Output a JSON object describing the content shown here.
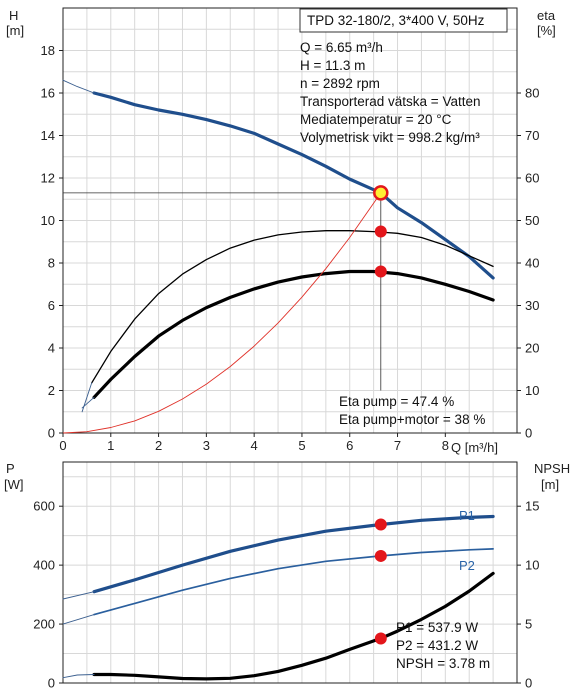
{
  "header": {
    "title": "TPD 32-180/2, 3*400 V, 50Hz"
  },
  "info_lines": [
    "Q = 6.65 m³/h",
    "H = 11.3 m",
    "n = 2892 rpm",
    "Transporterad vätska = Vatten",
    "Mediatemperatur = 20 °C",
    "Volymetrisk vikt = 998.2 kg/m³"
  ],
  "eta_lines": [
    "Eta pump = 47.4 %",
    "Eta pump+motor = 38 %"
  ],
  "power_lines": [
    "P1 = 537.9 W",
    "P2 = 431.2 W",
    "NPSH = 3.78 m"
  ],
  "colors": {
    "head": "#1f4e8c",
    "p1": "#1f4e8c",
    "p2": "#2a5f9e",
    "eta": "#000000",
    "system": "#e0322a",
    "marker": "#e3161b",
    "duty_point": "#ffee33",
    "grid": "#d8d8d8"
  },
  "chart_data": [
    {
      "type": "line",
      "xlabel": "Q [m³/h]",
      "ylabel_left": "H\n[m]",
      "ylabel_right": "eta\n[%]",
      "xlim": [
        0,
        9.5
      ],
      "ylim": [
        0,
        20
      ],
      "ylim_right": [
        0,
        100
      ],
      "xticks": [
        0,
        1,
        2,
        3,
        4,
        5,
        6,
        7,
        8
      ],
      "yticks_left": [
        0,
        2,
        4,
        6,
        8,
        10,
        12,
        14,
        16,
        18
      ],
      "yticks_right": [
        0,
        10,
        20,
        30,
        40,
        50,
        60,
        70,
        80
      ],
      "grid": true,
      "series": [
        {
          "name": "H",
          "axis": "left",
          "style": "head",
          "x": [
            0.65,
            1.0,
            1.5,
            2.0,
            2.5,
            3.0,
            3.5,
            4.0,
            4.5,
            5.0,
            5.5,
            6.0,
            6.5,
            6.65,
            7.0,
            7.5,
            8.0,
            8.5,
            9.0
          ],
          "y": [
            16.0,
            15.8,
            15.45,
            15.2,
            15.0,
            14.75,
            14.45,
            14.1,
            13.6,
            13.1,
            12.55,
            11.95,
            11.45,
            11.3,
            10.6,
            9.9,
            9.1,
            8.3,
            7.3
          ]
        },
        {
          "name": "H extension",
          "axis": "left",
          "style": "thin",
          "x": [
            0.0,
            0.3,
            0.65
          ],
          "y": [
            16.6,
            16.3,
            16.0
          ]
        },
        {
          "name": "Eta pump",
          "axis": "right",
          "style": "eta_thin",
          "x": [
            0.6,
            1.0,
            1.5,
            2.0,
            2.5,
            3.0,
            3.5,
            4.0,
            4.5,
            5.0,
            5.5,
            6.0,
            6.5,
            7.0,
            7.5,
            8.0,
            8.5,
            9.0
          ],
          "y": [
            11.8,
            19.2,
            26.8,
            32.8,
            37.4,
            40.8,
            43.5,
            45.4,
            46.6,
            47.3,
            47.6,
            47.6,
            47.4,
            47.0,
            46.0,
            44.2,
            41.7,
            39.2
          ]
        },
        {
          "name": "Eta pump+motor",
          "axis": "right",
          "style": "eta_thick",
          "x": [
            0.65,
            1.0,
            1.5,
            2.0,
            2.5,
            3.0,
            3.5,
            4.0,
            4.5,
            5.0,
            5.5,
            6.0,
            6.5,
            7.0,
            7.5,
            8.0,
            8.5,
            9.0
          ],
          "y": [
            8.4,
            12.6,
            18.0,
            22.8,
            26.5,
            29.5,
            31.9,
            33.9,
            35.5,
            36.7,
            37.5,
            38.0,
            38.0,
            37.5,
            36.5,
            35.0,
            33.3,
            31.3
          ]
        },
        {
          "name": "Eta extension",
          "axis": "right",
          "style": "thin",
          "x": [
            0.4,
            0.6
          ],
          "y": [
            5.0,
            11.8
          ]
        },
        {
          "name": "Eta pm extension",
          "axis": "right",
          "style": "thin",
          "x": [
            0.4,
            0.65
          ],
          "y": [
            5.9,
            8.4
          ]
        },
        {
          "name": "System",
          "axis": "left",
          "style": "system",
          "x": [
            0.0,
            0.5,
            1.0,
            1.5,
            2.0,
            2.5,
            3.0,
            3.5,
            4.0,
            4.5,
            5.0,
            5.5,
            6.0,
            6.65
          ],
          "y": [
            0.0,
            0.06,
            0.26,
            0.57,
            1.02,
            1.6,
            2.3,
            3.13,
            4.09,
            5.18,
            6.39,
            7.73,
            9.2,
            11.3
          ]
        }
      ],
      "points": [
        {
          "x": 6.65,
          "y": 11.3,
          "axis": "left",
          "kind": "duty"
        },
        {
          "x": 6.65,
          "y": 47.4,
          "axis": "right",
          "kind": "marker"
        },
        {
          "x": 6.65,
          "y": 38.0,
          "axis": "right",
          "kind": "marker"
        }
      ]
    },
    {
      "type": "line",
      "ylabel_left": "P\n[W]",
      "ylabel_right": "NPSH\n[m]",
      "xlim": [
        0,
        9.5
      ],
      "ylim": [
        0,
        750
      ],
      "ylim_right": [
        0,
        18.75
      ],
      "yticks_left": [
        0,
        200,
        400,
        600
      ],
      "yticks_right": [
        0,
        5,
        10,
        15
      ],
      "grid": true,
      "series": [
        {
          "name": "P1",
          "axis": "left",
          "style": "p1",
          "x": [
            0.65,
            1.5,
            2.5,
            3.5,
            4.5,
            5.5,
            6.65,
            7.5,
            8.5,
            9.0
          ],
          "y": [
            310,
            350,
            400,
            447,
            485,
            515,
            537.9,
            552,
            562,
            565
          ]
        },
        {
          "name": "P2",
          "axis": "left",
          "style": "p2",
          "x": [
            0.65,
            1.5,
            2.5,
            3.5,
            4.5,
            5.5,
            6.65,
            7.5,
            8.5,
            9.0
          ],
          "y": [
            232,
            270,
            315,
            355,
            388,
            413,
            431.2,
            443,
            452,
            455
          ]
        },
        {
          "name": "P1 extension",
          "axis": "left",
          "style": "thin",
          "x": [
            0.0,
            0.65
          ],
          "y": [
            285,
            310
          ]
        },
        {
          "name": "P2 extension",
          "axis": "left",
          "style": "thin",
          "x": [
            0.0,
            0.65
          ],
          "y": [
            200,
            232
          ]
        },
        {
          "name": "NPSH",
          "axis": "right",
          "style": "npsh",
          "x": [
            0.65,
            1.0,
            1.5,
            2.0,
            2.5,
            3.0,
            3.5,
            4.0,
            4.5,
            5.0,
            5.5,
            6.0,
            6.65,
            7.0,
            7.5,
            8.0,
            8.5,
            9.0
          ],
          "y": [
            0.72,
            0.72,
            0.65,
            0.52,
            0.38,
            0.35,
            0.4,
            0.62,
            0.98,
            1.5,
            2.1,
            2.85,
            3.78,
            4.4,
            5.4,
            6.5,
            7.8,
            9.3
          ]
        },
        {
          "name": "NPSH extension",
          "axis": "right",
          "style": "thin",
          "x": [
            0.0,
            0.3,
            0.65
          ],
          "y": [
            0.45,
            0.68,
            0.72
          ]
        }
      ],
      "points": [
        {
          "x": 6.65,
          "y": 537.9,
          "axis": "left",
          "kind": "marker"
        },
        {
          "x": 6.65,
          "y": 431.2,
          "axis": "left",
          "kind": "marker"
        },
        {
          "x": 6.65,
          "y": 3.78,
          "axis": "right",
          "kind": "marker"
        }
      ],
      "series_labels": [
        "P1",
        "P2"
      ]
    }
  ]
}
